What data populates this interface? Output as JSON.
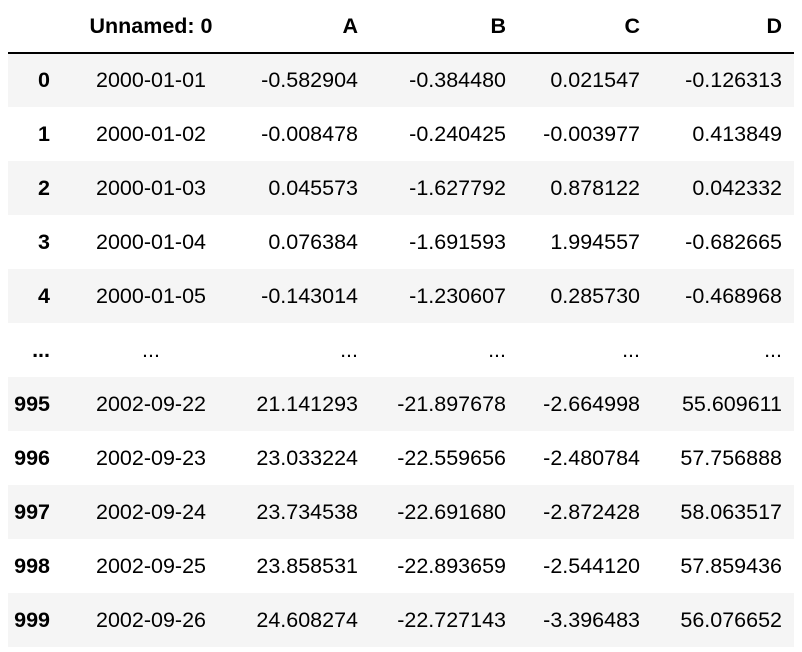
{
  "dataframe": {
    "columns": [
      "",
      "Unnamed: 0",
      "A",
      "B",
      "C",
      "D"
    ],
    "rows": [
      {
        "index": "0",
        "cells": [
          "2000-01-01",
          "-0.582904",
          "-0.384480",
          "0.021547",
          "-0.126313"
        ]
      },
      {
        "index": "1",
        "cells": [
          "2000-01-02",
          "-0.008478",
          "-0.240425",
          "-0.003977",
          "0.413849"
        ]
      },
      {
        "index": "2",
        "cells": [
          "2000-01-03",
          "0.045573",
          "-1.627792",
          "0.878122",
          "0.042332"
        ]
      },
      {
        "index": "3",
        "cells": [
          "2000-01-04",
          "0.076384",
          "-1.691593",
          "1.994557",
          "-0.682665"
        ]
      },
      {
        "index": "4",
        "cells": [
          "2000-01-05",
          "-0.143014",
          "-1.230607",
          "0.285730",
          "-0.468968"
        ]
      },
      {
        "index": "...",
        "cells": [
          "...",
          "...",
          "...",
          "...",
          "..."
        ]
      },
      {
        "index": "995",
        "cells": [
          "2002-09-22",
          "21.141293",
          "-21.897678",
          "-2.664998",
          "55.609611"
        ]
      },
      {
        "index": "996",
        "cells": [
          "2002-09-23",
          "23.033224",
          "-22.559656",
          "-2.480784",
          "57.756888"
        ]
      },
      {
        "index": "997",
        "cells": [
          "2002-09-24",
          "23.734538",
          "-22.691680",
          "-2.872428",
          "58.063517"
        ]
      },
      {
        "index": "998",
        "cells": [
          "2002-09-25",
          "23.858531",
          "-22.893659",
          "-2.544120",
          "57.859436"
        ]
      },
      {
        "index": "999",
        "cells": [
          "2002-09-26",
          "24.608274",
          "-22.727143",
          "-3.396483",
          "56.076652"
        ]
      }
    ]
  }
}
